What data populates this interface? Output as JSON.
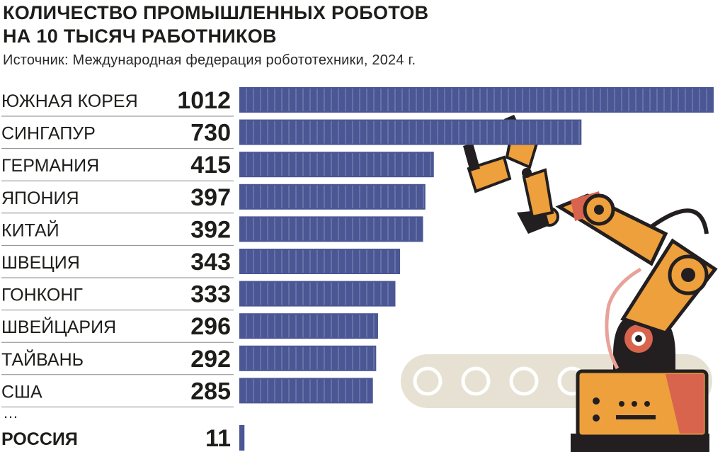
{
  "chart_data": {
    "type": "bar",
    "orientation": "horizontal",
    "title_lines": [
      "КОЛИЧЕСТВО ПРОМЫШЛЕННЫХ РОБОТОВ",
      "НА 10 ТЫСЯЧ РАБОТНИКОВ"
    ],
    "subtitle": "Источник: Международная федерация робототехники, 2024 г.",
    "categories": [
      "ЮЖНАЯ КОРЕЯ",
      "СИНГАПУР",
      "ГЕРМАНИЯ",
      "ЯПОНИЯ",
      "КИТАЙ",
      "ШВЕЦИЯ",
      "ГОНКОНГ",
      "ШВЕЙЦАРИЯ",
      "ТАЙВАНЬ",
      "США"
    ],
    "values": [
      1012,
      730,
      415,
      397,
      392,
      343,
      333,
      296,
      292,
      285
    ],
    "ellipsis": "…",
    "highlight": {
      "category": "РОССИЯ",
      "value": 11
    },
    "xlim": [
      0,
      1012
    ],
    "grid": false,
    "legend": "none",
    "colors": {
      "bar": "#4a5794",
      "segment_line": "#c9cfe6",
      "text": "#1d1d1b",
      "robot_orange": "#eea03c",
      "robot_dark": "#231f20",
      "robot_red": "#d9644e",
      "conveyor": "#e6e1d3"
    }
  }
}
